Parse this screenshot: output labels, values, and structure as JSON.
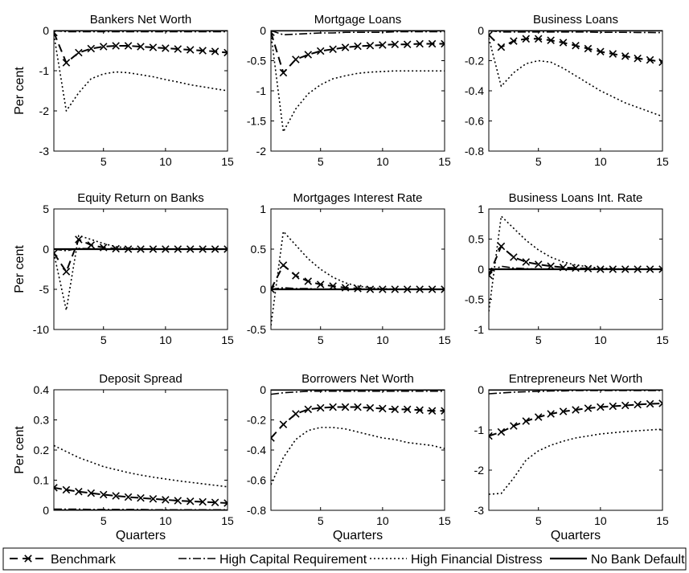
{
  "figure": {
    "ylabel": "Per cent",
    "xlabel": "Quarters"
  },
  "legend": {
    "entries": [
      {
        "name": "Benchmark",
        "style": "benchmark"
      },
      {
        "name": "High Capital Requirement",
        "style": "hcr"
      },
      {
        "name": "High Financial Distress",
        "style": "hfd"
      },
      {
        "name": "No Bank Default",
        "style": "nbd"
      }
    ]
  },
  "chart_data": [
    {
      "type": "line",
      "title": "Bankers Net Worth",
      "xlim": [
        1,
        15
      ],
      "ylim": [
        -3,
        0
      ],
      "xticks": [
        5,
        10,
        15
      ],
      "yticks": [
        -3,
        -2,
        -1,
        0
      ],
      "ytick_labels": [
        "-3",
        "-2",
        "-1",
        "0"
      ],
      "x": [
        1,
        2,
        3,
        4,
        5,
        6,
        7,
        8,
        9,
        10,
        11,
        12,
        13,
        14,
        15
      ],
      "series": [
        {
          "name": "Benchmark",
          "values": [
            -0.05,
            -0.8,
            -0.55,
            -0.45,
            -0.4,
            -0.38,
            -0.38,
            -0.4,
            -0.42,
            -0.44,
            -0.46,
            -0.48,
            -0.5,
            -0.52,
            -0.55
          ]
        },
        {
          "name": "High Capital Requirement",
          "values": [
            0,
            -0.03,
            -0.03,
            -0.03,
            -0.03,
            -0.03,
            -0.03,
            -0.03,
            -0.03,
            -0.03,
            -0.03,
            -0.03,
            -0.03,
            -0.03,
            -0.03
          ]
        },
        {
          "name": "High Financial Distress",
          "values": [
            -0.1,
            -2.0,
            -1.55,
            -1.2,
            -1.08,
            -1.03,
            -1.05,
            -1.1,
            -1.15,
            -1.22,
            -1.28,
            -1.35,
            -1.4,
            -1.45,
            -1.5
          ]
        },
        {
          "name": "No Bank Default",
          "values": [
            0,
            0,
            0,
            0,
            0,
            0,
            0,
            0,
            0,
            0,
            0,
            0,
            0,
            0,
            0
          ]
        }
      ]
    },
    {
      "type": "line",
      "title": "Mortgage Loans",
      "xlim": [
        1,
        15
      ],
      "ylim": [
        -2,
        0
      ],
      "xticks": [
        5,
        10,
        15
      ],
      "yticks": [
        -2,
        -1.5,
        -1,
        -0.5,
        0
      ],
      "ytick_labels": [
        "-2",
        "-1.5",
        "-1",
        "-0.5",
        "0"
      ],
      "x": [
        1,
        2,
        3,
        4,
        5,
        6,
        7,
        8,
        9,
        10,
        11,
        12,
        13,
        14,
        15
      ],
      "series": [
        {
          "name": "Benchmark",
          "values": [
            -0.03,
            -0.7,
            -0.48,
            -0.4,
            -0.34,
            -0.31,
            -0.28,
            -0.26,
            -0.25,
            -0.24,
            -0.23,
            -0.23,
            -0.22,
            -0.22,
            -0.22
          ]
        },
        {
          "name": "High Capital Requirement",
          "values": [
            0,
            -0.07,
            -0.06,
            -0.05,
            -0.04,
            -0.04,
            -0.03,
            -0.03,
            -0.03,
            -0.03,
            -0.02,
            -0.02,
            -0.02,
            -0.02,
            -0.02
          ]
        },
        {
          "name": "High Financial Distress",
          "values": [
            -0.05,
            -1.68,
            -1.3,
            -1.05,
            -0.9,
            -0.8,
            -0.75,
            -0.71,
            -0.69,
            -0.68,
            -0.67,
            -0.67,
            -0.67,
            -0.67,
            -0.67
          ]
        },
        {
          "name": "No Bank Default",
          "values": [
            0,
            0,
            0,
            0,
            0,
            0,
            0,
            0,
            0,
            0,
            0,
            0,
            0,
            0,
            0
          ]
        }
      ]
    },
    {
      "type": "line",
      "title": "Business Loans",
      "xlim": [
        1,
        15
      ],
      "ylim": [
        -0.8,
        0
      ],
      "xticks": [
        5,
        10,
        15
      ],
      "yticks": [
        -0.8,
        -0.6,
        -0.4,
        -0.2,
        0
      ],
      "ytick_labels": [
        "-0.8",
        "-0.6",
        "-0.4",
        "-0.2",
        "0"
      ],
      "x": [
        1,
        2,
        3,
        4,
        5,
        6,
        7,
        8,
        9,
        10,
        11,
        12,
        13,
        14,
        15
      ],
      "series": [
        {
          "name": "Benchmark",
          "values": [
            -0.03,
            -0.11,
            -0.07,
            -0.055,
            -0.055,
            -0.065,
            -0.08,
            -0.1,
            -0.12,
            -0.14,
            -0.155,
            -0.17,
            -0.185,
            -0.195,
            -0.21
          ]
        },
        {
          "name": "High Capital Requirement",
          "values": [
            0,
            -0.01,
            -0.01,
            -0.01,
            -0.01,
            -0.01,
            -0.01,
            -0.01,
            -0.01,
            -0.012,
            -0.012,
            -0.012,
            -0.013,
            -0.013,
            -0.014
          ]
        },
        {
          "name": "High Financial Distress",
          "values": [
            -0.05,
            -0.37,
            -0.28,
            -0.22,
            -0.2,
            -0.21,
            -0.25,
            -0.3,
            -0.35,
            -0.4,
            -0.44,
            -0.48,
            -0.51,
            -0.54,
            -0.57
          ]
        },
        {
          "name": "No Bank Default",
          "values": [
            0,
            0,
            0,
            0,
            0,
            0,
            0,
            0,
            0,
            0,
            0,
            0,
            0,
            0,
            0
          ]
        }
      ]
    },
    {
      "type": "line",
      "title": "Equity  Return on Banks",
      "xlim": [
        1,
        15
      ],
      "ylim": [
        -10,
        5
      ],
      "xticks": [
        5,
        10,
        15
      ],
      "yticks": [
        -10,
        -5,
        0,
        5
      ],
      "ytick_labels": [
        "-10",
        "-5",
        "0",
        "5"
      ],
      "x": [
        1,
        2,
        3,
        4,
        5,
        6,
        7,
        8,
        9,
        10,
        11,
        12,
        13,
        14,
        15
      ],
      "series": [
        {
          "name": "Benchmark",
          "values": [
            -0.5,
            -2.8,
            1.2,
            0.5,
            0.2,
            0.05,
            0,
            0,
            0,
            0,
            0,
            0,
            0,
            0,
            0
          ]
        },
        {
          "name": "High Capital Requirement",
          "values": [
            0,
            -0.2,
            0.1,
            0.05,
            0,
            0,
            0,
            0,
            0,
            0,
            0,
            0,
            0,
            0,
            0
          ]
        },
        {
          "name": "High Financial Distress",
          "values": [
            -0.5,
            -7.6,
            1.7,
            1.2,
            0.7,
            0.3,
            0.15,
            0.05,
            0,
            0,
            0,
            0,
            0,
            0,
            0
          ]
        },
        {
          "name": "No Bank Default",
          "values": [
            0,
            0,
            0,
            0,
            0,
            0,
            0,
            0,
            0,
            0,
            0,
            0,
            0,
            0,
            0
          ]
        }
      ]
    },
    {
      "type": "line",
      "title": "Mortgages Interest Rate",
      "xlim": [
        1,
        15
      ],
      "ylim": [
        -0.5,
        1
      ],
      "xticks": [
        5,
        10,
        15
      ],
      "yticks": [
        -0.5,
        0,
        0.5,
        1
      ],
      "ytick_labels": [
        "-0.5",
        "0",
        "0.5",
        "1"
      ],
      "x": [
        1,
        2,
        3,
        4,
        5,
        6,
        7,
        8,
        9,
        10,
        11,
        12,
        13,
        14,
        15
      ],
      "series": [
        {
          "name": "Benchmark",
          "values": [
            0,
            0.3,
            0.17,
            0.1,
            0.06,
            0.04,
            0.02,
            0.01,
            0,
            0,
            0,
            0,
            0,
            0,
            0
          ]
        },
        {
          "name": "High Capital Requirement",
          "values": [
            0,
            0.02,
            0.01,
            0.01,
            0,
            0,
            0,
            0,
            0,
            0,
            0,
            0,
            0,
            0,
            0
          ]
        },
        {
          "name": "High Financial Distress",
          "values": [
            -0.45,
            0.72,
            0.55,
            0.38,
            0.25,
            0.15,
            0.08,
            0.04,
            0.02,
            0.01,
            0,
            0,
            0,
            0,
            0
          ]
        },
        {
          "name": "No Bank Default",
          "values": [
            0,
            0,
            0,
            0,
            0,
            0,
            0,
            0,
            0,
            0,
            0,
            0,
            0,
            0,
            0
          ]
        }
      ]
    },
    {
      "type": "line",
      "title": "Business Loans Int. Rate",
      "xlim": [
        1,
        15
      ],
      "ylim": [
        -1,
        1
      ],
      "xticks": [
        5,
        10,
        15
      ],
      "yticks": [
        -1,
        -0.5,
        0,
        0.5,
        1
      ],
      "ytick_labels": [
        "-1",
        "-0.5",
        "0",
        "0.5",
        "1"
      ],
      "x": [
        1,
        2,
        3,
        4,
        5,
        6,
        7,
        8,
        9,
        10,
        11,
        12,
        13,
        14,
        15
      ],
      "series": [
        {
          "name": "Benchmark",
          "values": [
            -0.1,
            0.38,
            0.2,
            0.12,
            0.08,
            0.05,
            0.03,
            0.02,
            0.01,
            0,
            0,
            0,
            0,
            0,
            0
          ]
        },
        {
          "name": "High Capital Requirement",
          "values": [
            -0.05,
            0.05,
            0.02,
            0.01,
            0,
            0,
            0,
            0,
            0,
            0,
            0,
            0,
            0,
            0,
            0
          ]
        },
        {
          "name": "High Financial Distress",
          "values": [
            -0.7,
            0.88,
            0.68,
            0.48,
            0.32,
            0.2,
            0.12,
            0.07,
            0.04,
            0.02,
            0.01,
            0,
            0,
            0,
            0
          ]
        },
        {
          "name": "No Bank Default",
          "values": [
            0,
            0,
            0,
            0,
            0,
            0,
            0,
            0,
            0,
            0,
            0,
            0,
            0,
            0,
            0
          ]
        }
      ]
    },
    {
      "type": "line",
      "title": "Deposit Spread",
      "xlim": [
        1,
        15
      ],
      "ylim": [
        0,
        0.4
      ],
      "xticks": [
        5,
        10,
        15
      ],
      "yticks": [
        0,
        0.1,
        0.2,
        0.3,
        0.4
      ],
      "ytick_labels": [
        "0",
        "0.1",
        "0.2",
        "0.3",
        "0.4"
      ],
      "x": [
        1,
        2,
        3,
        4,
        5,
        6,
        7,
        8,
        9,
        10,
        11,
        12,
        13,
        14,
        15
      ],
      "series": [
        {
          "name": "Benchmark",
          "values": [
            0.075,
            0.068,
            0.062,
            0.057,
            0.052,
            0.048,
            0.044,
            0.041,
            0.038,
            0.035,
            0.032,
            0.03,
            0.028,
            0.026,
            0.024
          ]
        },
        {
          "name": "High Capital Requirement",
          "values": [
            0.004,
            0.004,
            0.004,
            0.003,
            0.003,
            0.003,
            0.003,
            0.003,
            0.002,
            0.002,
            0.002,
            0.002,
            0.002,
            0.002,
            0.002
          ]
        },
        {
          "name": "High Financial Distress",
          "values": [
            0.215,
            0.195,
            0.175,
            0.16,
            0.145,
            0.135,
            0.125,
            0.117,
            0.11,
            0.104,
            0.098,
            0.093,
            0.088,
            0.083,
            0.078
          ]
        },
        {
          "name": "No Bank Default",
          "values": [
            0,
            0,
            0,
            0,
            0,
            0,
            0,
            0,
            0,
            0,
            0,
            0,
            0,
            0,
            0
          ]
        }
      ]
    },
    {
      "type": "line",
      "title": "Borrowers Net Worth",
      "xlim": [
        1,
        15
      ],
      "ylim": [
        -0.8,
        0
      ],
      "xticks": [
        5,
        10,
        15
      ],
      "yticks": [
        -0.8,
        -0.6,
        -0.4,
        -0.2,
        0
      ],
      "ytick_labels": [
        "-0.8",
        "-0.6",
        "-0.4",
        "-0.2",
        "0"
      ],
      "x": [
        1,
        2,
        3,
        4,
        5,
        6,
        7,
        8,
        9,
        10,
        11,
        12,
        13,
        14,
        15
      ],
      "series": [
        {
          "name": "Benchmark",
          "values": [
            -0.32,
            -0.23,
            -0.16,
            -0.13,
            -0.12,
            -0.115,
            -0.115,
            -0.115,
            -0.12,
            -0.125,
            -0.13,
            -0.13,
            -0.135,
            -0.14,
            -0.14
          ]
        },
        {
          "name": "High Capital Requirement",
          "values": [
            -0.03,
            -0.02,
            -0.015,
            -0.01,
            -0.01,
            -0.01,
            -0.01,
            -0.01,
            -0.01,
            -0.01,
            -0.01,
            -0.01,
            -0.01,
            -0.01,
            -0.01
          ]
        },
        {
          "name": "High Financial Distress",
          "values": [
            -0.63,
            -0.45,
            -0.33,
            -0.27,
            -0.25,
            -0.25,
            -0.26,
            -0.28,
            -0.3,
            -0.32,
            -0.33,
            -0.35,
            -0.36,
            -0.37,
            -0.39
          ]
        },
        {
          "name": "No Bank Default",
          "values": [
            0,
            0,
            0,
            0,
            0,
            0,
            0,
            0,
            0,
            0,
            0,
            0,
            0,
            0,
            0
          ]
        }
      ]
    },
    {
      "type": "line",
      "title": "Entrepreneurs Net Worth",
      "xlim": [
        1,
        15
      ],
      "ylim": [
        -3,
        0
      ],
      "xticks": [
        5,
        10,
        15
      ],
      "yticks": [
        -3,
        -2,
        -1,
        0
      ],
      "ytick_labels": [
        "-3",
        "-2",
        "-1",
        "0"
      ],
      "x": [
        1,
        2,
        3,
        4,
        5,
        6,
        7,
        8,
        9,
        10,
        11,
        12,
        13,
        14,
        15
      ],
      "series": [
        {
          "name": "Benchmark",
          "values": [
            -1.15,
            -1.05,
            -0.9,
            -0.78,
            -0.68,
            -0.6,
            -0.54,
            -0.5,
            -0.46,
            -0.43,
            -0.41,
            -0.39,
            -0.37,
            -0.35,
            -0.34
          ]
        },
        {
          "name": "High Capital Requirement",
          "values": [
            -0.1,
            -0.08,
            -0.06,
            -0.05,
            -0.04,
            -0.03,
            -0.03,
            -0.02,
            -0.02,
            -0.02,
            -0.02,
            -0.02,
            -0.02,
            -0.02,
            -0.02
          ]
        },
        {
          "name": "High Financial Distress",
          "values": [
            -2.6,
            -2.58,
            -2.2,
            -1.75,
            -1.52,
            -1.38,
            -1.28,
            -1.2,
            -1.15,
            -1.1,
            -1.07,
            -1.04,
            -1.02,
            -1.0,
            -0.98
          ]
        },
        {
          "name": "No Bank Default",
          "values": [
            0,
            0,
            0,
            0,
            0,
            0,
            0,
            0,
            0,
            0,
            0,
            0,
            0,
            0,
            0
          ]
        }
      ]
    }
  ]
}
